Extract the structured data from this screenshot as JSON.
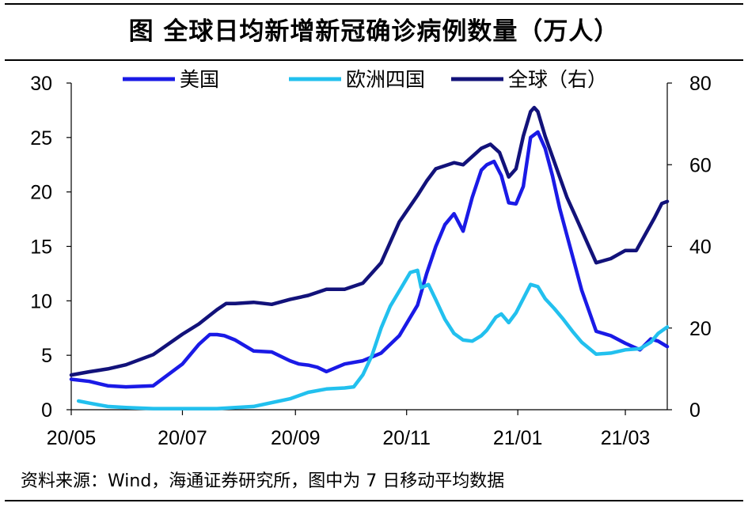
{
  "chart_data": {
    "type": "line",
    "title": "图  全球日均新增新冠确诊病例数量（万人）",
    "xlabel": "",
    "ylabel": "",
    "x_tick_labels": [
      "20/05",
      "20/07",
      "20/09",
      "20/11",
      "21/01",
      "21/03"
    ],
    "x_ticks": [
      0,
      61,
      123,
      184,
      245,
      304
    ],
    "x_range": [
      0,
      327
    ],
    "ylim_left": [
      0,
      30
    ],
    "yticks_left": [
      0,
      5,
      10,
      15,
      20,
      25,
      30
    ],
    "ylim_right": [
      0,
      80
    ],
    "yticks_right": [
      0,
      20,
      40,
      60,
      80
    ],
    "legend_position": "top",
    "series": [
      {
        "name": "美国",
        "axis": "left",
        "color": "#1a1ae6",
        "x": [
          0,
          10,
          20,
          30,
          45,
          61,
          70,
          76,
          80,
          84,
          90,
          100,
          110,
          120,
          125,
          130,
          135,
          140,
          150,
          160,
          170,
          180,
          190,
          195,
          200,
          205,
          210,
          215,
          220,
          225,
          228,
          232,
          236,
          240,
          244,
          248,
          252,
          256,
          260,
          264,
          268,
          272,
          276,
          280,
          288,
          296,
          304,
          312,
          318,
          322,
          327
        ],
        "values": [
          2.8,
          2.6,
          2.2,
          2.1,
          2.2,
          4.2,
          6.0,
          6.9,
          6.9,
          6.8,
          6.4,
          5.4,
          5.3,
          4.5,
          4.2,
          4.1,
          3.9,
          3.5,
          4.2,
          4.5,
          5.2,
          6.8,
          9.6,
          12.5,
          15.0,
          17.0,
          18.0,
          16.4,
          19.5,
          22.0,
          22.5,
          22.8,
          21.5,
          19.0,
          18.9,
          20.5,
          25.0,
          25.5,
          24.0,
          21.5,
          18.5,
          16.0,
          13.5,
          11.0,
          7.2,
          6.8,
          6.1,
          5.5,
          6.5,
          6.3,
          5.8
        ]
      },
      {
        "name": "欧洲四国",
        "axis": "left",
        "color": "#22c0ee",
        "x": [
          4,
          10,
          20,
          30,
          45,
          61,
          80,
          100,
          120,
          130,
          140,
          150,
          155,
          160,
          165,
          170,
          175,
          180,
          186,
          190,
          192,
          196,
          200,
          205,
          210,
          215,
          220,
          225,
          228,
          233,
          236,
          240,
          244,
          248,
          252,
          256,
          260,
          265,
          270,
          275,
          280,
          288,
          296,
          304,
          312,
          318,
          322,
          327
        ],
        "values": [
          0.8,
          0.6,
          0.3,
          0.2,
          0.1,
          0.1,
          0.1,
          0.3,
          1.0,
          1.6,
          1.9,
          2.0,
          2.1,
          3.2,
          5.0,
          7.5,
          9.5,
          10.9,
          12.6,
          12.8,
          11.2,
          11.5,
          10.1,
          8.3,
          7.0,
          6.4,
          6.3,
          6.8,
          7.3,
          8.5,
          8.8,
          8.0,
          8.9,
          10.2,
          11.5,
          11.3,
          10.2,
          9.3,
          8.3,
          7.2,
          6.2,
          5.1,
          5.2,
          5.5,
          5.6,
          6.2,
          7.0,
          7.6
        ]
      },
      {
        "name": "全球（右）",
        "axis": "right",
        "color": "#12127a",
        "x": [
          0,
          10,
          20,
          30,
          45,
          61,
          70,
          80,
          85,
          90,
          100,
          110,
          120,
          130,
          140,
          150,
          160,
          170,
          180,
          190,
          195,
          200,
          210,
          215,
          220,
          225,
          230,
          235,
          240,
          244,
          248,
          252,
          254,
          256,
          260,
          264,
          268,
          272,
          276,
          280,
          288,
          296,
          304,
          310,
          315,
          320,
          324,
          327
        ],
        "values": [
          8.5,
          9.3,
          10.0,
          11.0,
          13.5,
          18.5,
          21.0,
          24.5,
          26.0,
          26.0,
          26.3,
          25.8,
          27.0,
          28.0,
          29.5,
          29.5,
          31.0,
          36.0,
          46.0,
          52.5,
          56.0,
          59.0,
          60.5,
          60.0,
          62.0,
          64.0,
          65.0,
          63.0,
          57.0,
          59.0,
          67.0,
          73.0,
          74.0,
          73.0,
          67.0,
          62.0,
          57.0,
          52.0,
          48.0,
          44.0,
          36.0,
          37.0,
          39.0,
          39.0,
          43.0,
          47.0,
          50.5,
          51.0
        ]
      }
    ]
  },
  "source_note": "资料来源：Wind，海通证券研究所，图中为 7 日移动平均数据"
}
